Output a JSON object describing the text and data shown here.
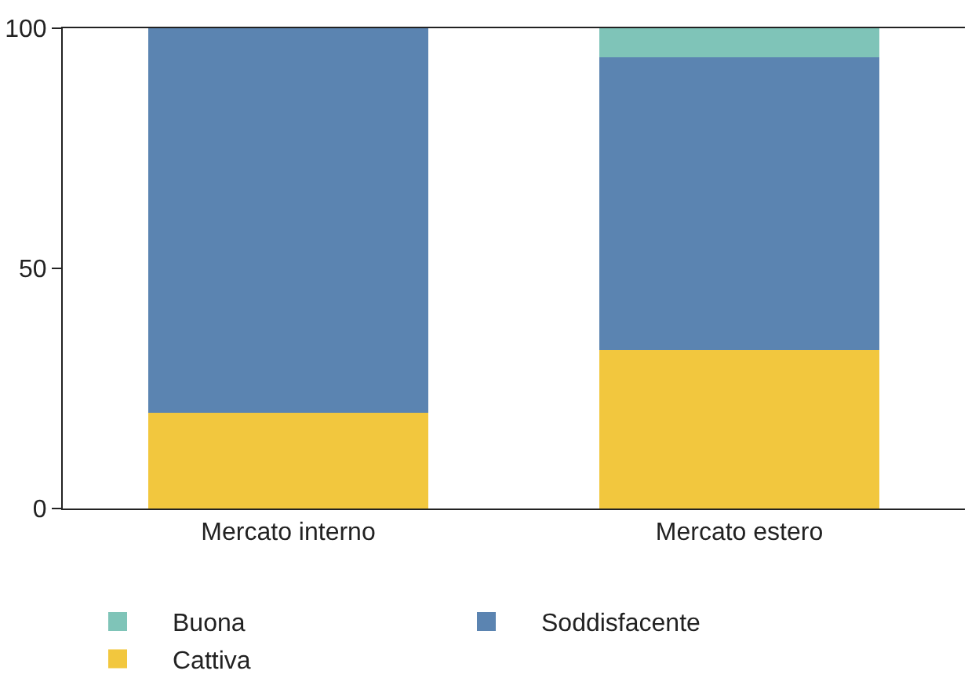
{
  "chart_data": {
    "type": "bar",
    "stacked": true,
    "categories": [
      "Mercato interno",
      "Mercato estero"
    ],
    "series": [
      {
        "name": "Cattiva",
        "color": "#f2c73e",
        "values": [
          20,
          33
        ]
      },
      {
        "name": "Soddisfacente",
        "color": "#5b84b1",
        "values": [
          80,
          61
        ]
      },
      {
        "name": "Buona",
        "color": "#7fc4b8",
        "values": [
          0,
          6
        ]
      }
    ],
    "ylim": [
      0,
      100
    ],
    "yticks": [
      0,
      50,
      100
    ],
    "legend": "bottom"
  }
}
